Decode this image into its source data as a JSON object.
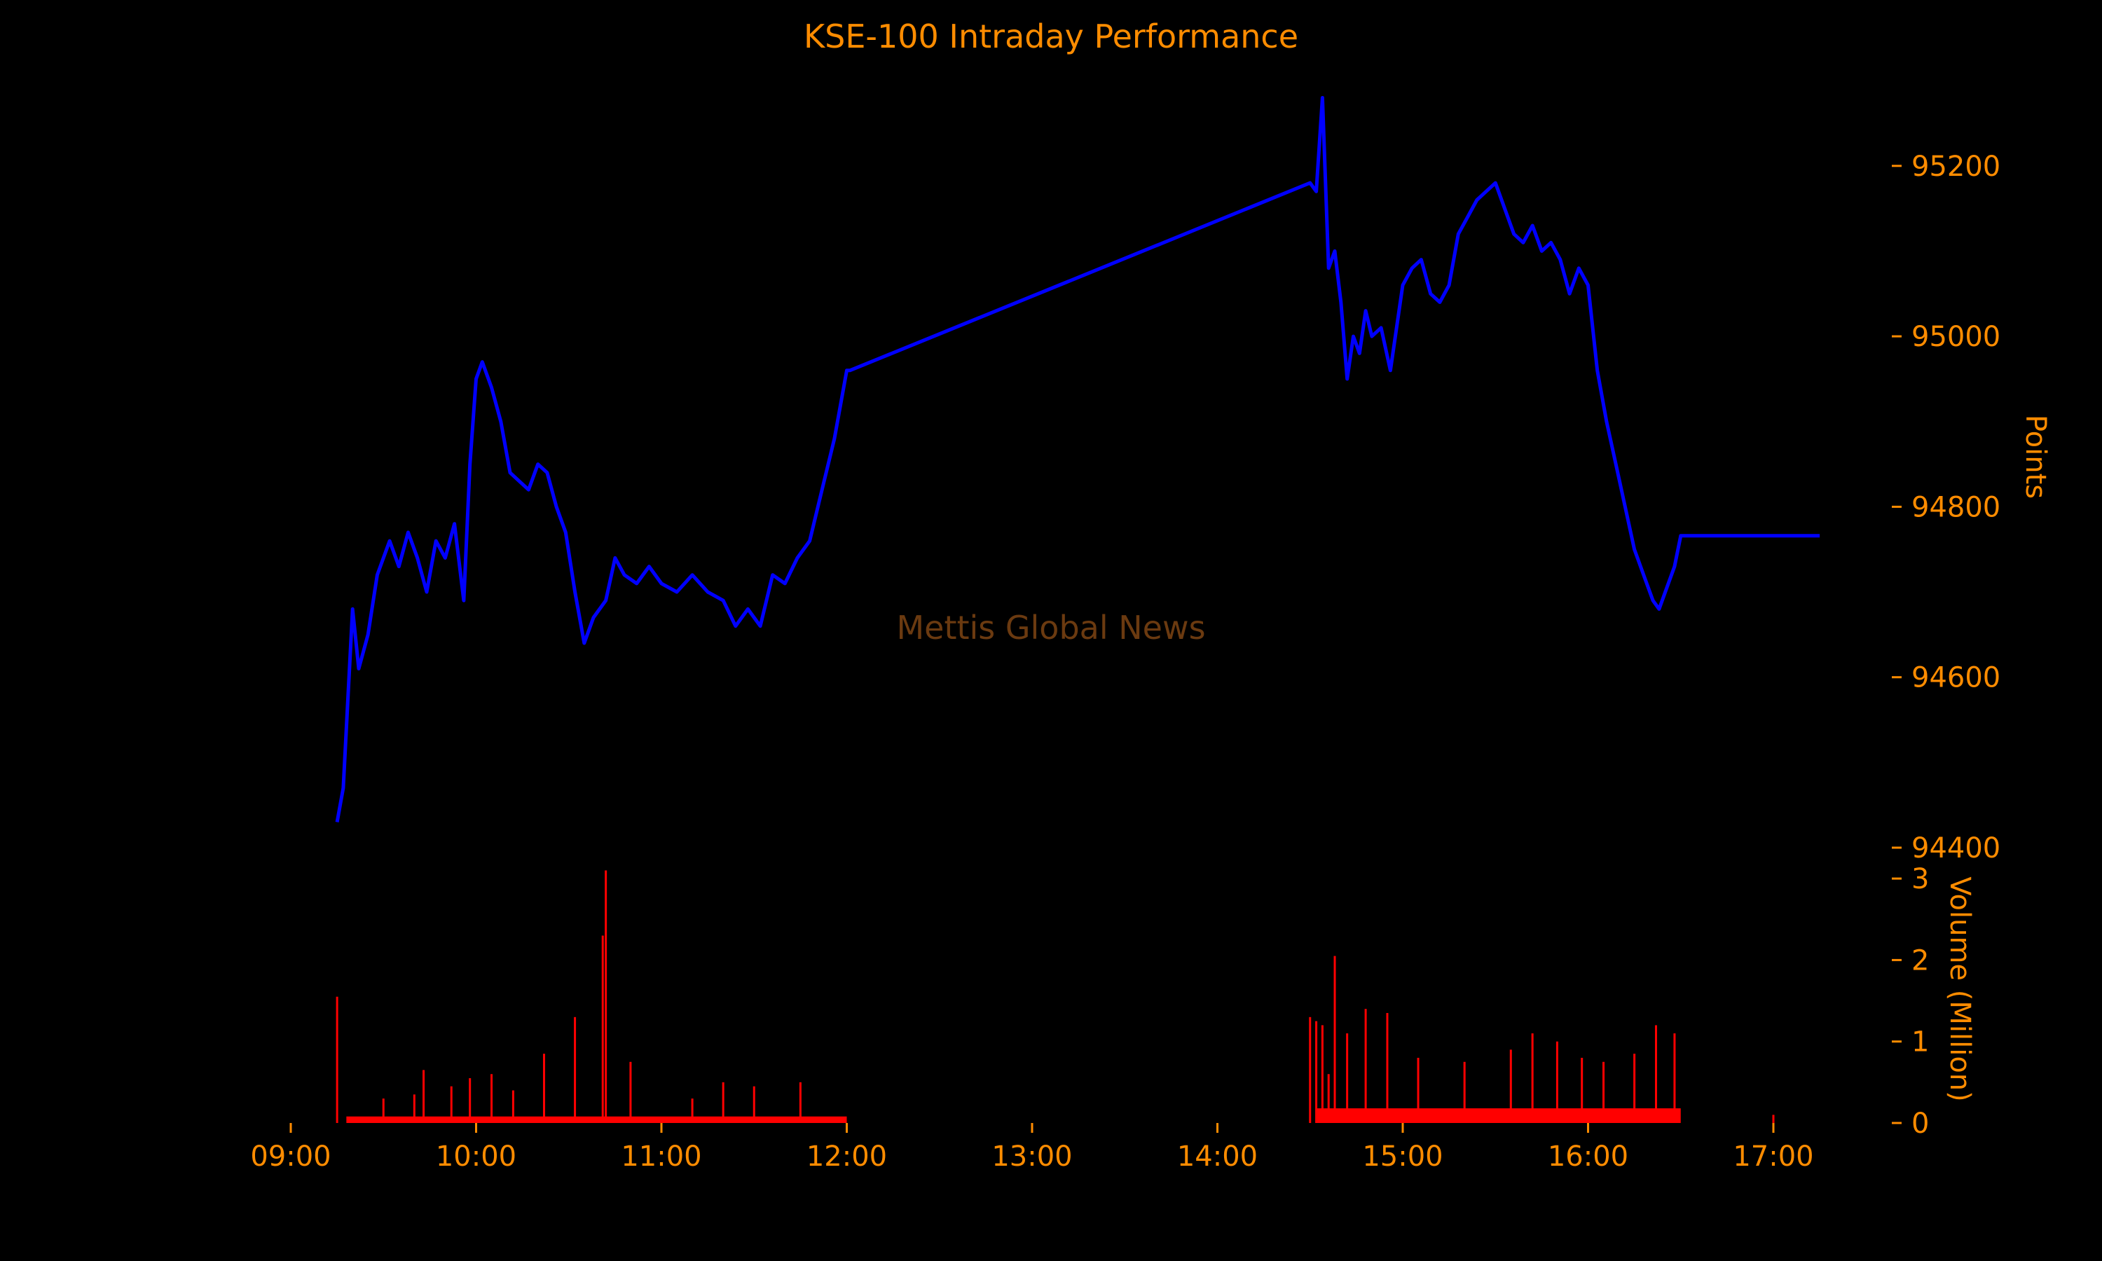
{
  "chart_data": {
    "type": "line",
    "title": "KSE-100 Intraday Performance",
    "watermark": "Mettis Global News",
    "colors": {
      "background": "#000000",
      "text": "#ff8c00",
      "price_line": "#0000ff",
      "volume_bars": "#ff0000",
      "watermark": "#6b3a10"
    },
    "x_axis": {
      "range": [
        "09:00",
        "17:15"
      ],
      "tick_labels": [
        "09:00",
        "10:00",
        "11:00",
        "12:00",
        "13:00",
        "14:00",
        "15:00",
        "16:00",
        "17:00"
      ]
    },
    "price": {
      "ylabel": "Points",
      "ylim": [
        94400,
        95300
      ],
      "tick_labels": [
        "94400",
        "94600",
        "94800",
        "95000",
        "95200"
      ],
      "series": {
        "points": [
          [
            "09:15",
            94430
          ],
          [
            "09:17",
            94470
          ],
          [
            "09:20",
            94680
          ],
          [
            "09:22",
            94610
          ],
          [
            "09:25",
            94650
          ],
          [
            "09:28",
            94720
          ],
          [
            "09:32",
            94760
          ],
          [
            "09:35",
            94730
          ],
          [
            "09:38",
            94770
          ],
          [
            "09:41",
            94740
          ],
          [
            "09:44",
            94700
          ],
          [
            "09:47",
            94760
          ],
          [
            "09:50",
            94740
          ],
          [
            "09:53",
            94780
          ],
          [
            "09:56",
            94690
          ],
          [
            "09:58",
            94850
          ],
          [
            "10:00",
            94950
          ],
          [
            "10:02",
            94970
          ],
          [
            "10:05",
            94940
          ],
          [
            "10:08",
            94900
          ],
          [
            "10:11",
            94840
          ],
          [
            "10:14",
            94830
          ],
          [
            "10:17",
            94820
          ],
          [
            "10:20",
            94850
          ],
          [
            "10:23",
            94840
          ],
          [
            "10:26",
            94800
          ],
          [
            "10:29",
            94770
          ],
          [
            "10:32",
            94700
          ],
          [
            "10:35",
            94640
          ],
          [
            "10:38",
            94670
          ],
          [
            "10:42",
            94690
          ],
          [
            "10:45",
            94740
          ],
          [
            "10:48",
            94720
          ],
          [
            "10:52",
            94710
          ],
          [
            "10:56",
            94730
          ],
          [
            "11:00",
            94710
          ],
          [
            "11:05",
            94700
          ],
          [
            "11:10",
            94720
          ],
          [
            "11:15",
            94700
          ],
          [
            "11:20",
            94690
          ],
          [
            "11:24",
            94660
          ],
          [
            "11:28",
            94680
          ],
          [
            "11:32",
            94660
          ],
          [
            "11:36",
            94720
          ],
          [
            "11:40",
            94710
          ],
          [
            "11:44",
            94740
          ],
          [
            "11:48",
            94760
          ],
          [
            "11:52",
            94820
          ],
          [
            "11:56",
            94880
          ],
          [
            "11:58",
            94920
          ],
          [
            "12:00",
            94960
          ],
          [
            "12:01",
            94960
          ],
          [
            "14:30",
            95180
          ],
          [
            "14:32",
            95170
          ],
          [
            "14:34",
            95280
          ],
          [
            "14:36",
            95080
          ],
          [
            "14:38",
            95100
          ],
          [
            "14:40",
            95040
          ],
          [
            "14:42",
            94950
          ],
          [
            "14:44",
            95000
          ],
          [
            "14:46",
            94980
          ],
          [
            "14:48",
            95030
          ],
          [
            "14:50",
            95000
          ],
          [
            "14:53",
            95010
          ],
          [
            "14:56",
            94960
          ],
          [
            "15:00",
            95060
          ],
          [
            "15:03",
            95080
          ],
          [
            "15:06",
            95090
          ],
          [
            "15:09",
            95050
          ],
          [
            "15:12",
            95040
          ],
          [
            "15:15",
            95060
          ],
          [
            "15:18",
            95120
          ],
          [
            "15:21",
            95140
          ],
          [
            "15:24",
            95160
          ],
          [
            "15:27",
            95170
          ],
          [
            "15:30",
            95180
          ],
          [
            "15:33",
            95150
          ],
          [
            "15:36",
            95120
          ],
          [
            "15:39",
            95110
          ],
          [
            "15:42",
            95130
          ],
          [
            "15:45",
            95100
          ],
          [
            "15:48",
            95110
          ],
          [
            "15:51",
            95090
          ],
          [
            "15:54",
            95050
          ],
          [
            "15:57",
            95080
          ],
          [
            "16:00",
            95060
          ],
          [
            "16:03",
            94960
          ],
          [
            "16:06",
            94900
          ],
          [
            "16:09",
            94850
          ],
          [
            "16:12",
            94800
          ],
          [
            "16:15",
            94750
          ],
          [
            "16:18",
            94720
          ],
          [
            "16:21",
            94690
          ],
          [
            "16:23",
            94680
          ],
          [
            "16:25",
            94700
          ],
          [
            "16:28",
            94730
          ],
          [
            "16:30",
            94766
          ],
          [
            "17:15",
            94766
          ]
        ]
      }
    },
    "volume": {
      "ylabel": "Volume (Million)",
      "ylim": [
        0,
        3
      ],
      "tick_labels": [
        "0",
        "1",
        "2",
        "3"
      ],
      "session_baseline": [
        {
          "start": "09:18",
          "end": "12:00",
          "value": 0.08
        },
        {
          "start": "14:32",
          "end": "16:30",
          "value": 0.18
        }
      ],
      "spikes": [
        [
          "09:15",
          1.55
        ],
        [
          "09:30",
          0.3
        ],
        [
          "09:40",
          0.35
        ],
        [
          "09:43",
          0.65
        ],
        [
          "09:52",
          0.45
        ],
        [
          "09:58",
          0.55
        ],
        [
          "10:05",
          0.6
        ],
        [
          "10:12",
          0.4
        ],
        [
          "10:22",
          0.85
        ],
        [
          "10:32",
          1.3
        ],
        [
          "10:41",
          2.3
        ],
        [
          "10:42",
          3.1
        ],
        [
          "10:50",
          0.75
        ],
        [
          "11:10",
          0.3
        ],
        [
          "11:20",
          0.5
        ],
        [
          "11:30",
          0.45
        ],
        [
          "11:45",
          0.5
        ],
        [
          "14:30",
          1.3
        ],
        [
          "14:32",
          1.25
        ],
        [
          "14:34",
          1.2
        ],
        [
          "14:36",
          0.6
        ],
        [
          "14:38",
          2.05
        ],
        [
          "14:42",
          1.1
        ],
        [
          "14:48",
          1.4
        ],
        [
          "14:55",
          1.35
        ],
        [
          "15:05",
          0.8
        ],
        [
          "15:20",
          0.75
        ],
        [
          "15:35",
          0.9
        ],
        [
          "15:42",
          1.1
        ],
        [
          "15:50",
          1.0
        ],
        [
          "15:58",
          0.8
        ],
        [
          "16:05",
          0.75
        ],
        [
          "16:15",
          0.85
        ],
        [
          "16:22",
          1.2
        ],
        [
          "16:28",
          1.1
        ],
        [
          "17:00",
          0.1
        ]
      ]
    }
  }
}
